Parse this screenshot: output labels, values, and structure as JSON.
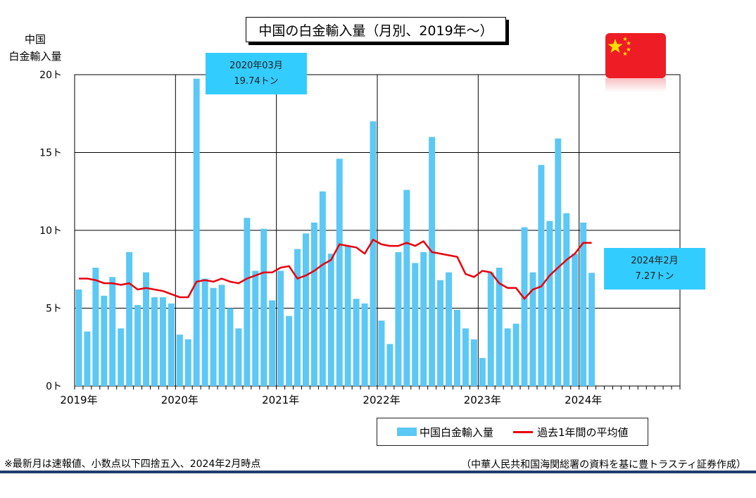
{
  "title": "中国の白金輸入量（月別、2019年〜）",
  "yaxis_title_line1": "中国",
  "yaxis_title_line2": "白金輸入量",
  "callout1": {
    "line1": "2020年03月",
    "line2": "19.74トン"
  },
  "callout2": {
    "line1": "2024年2月",
    "line2": "7.27トン"
  },
  "legend": {
    "bar": "中国白金輸入量",
    "line": "過去1年間の平均値"
  },
  "footnote": "※最新月は速報値、小数点以下四捨五入、2024年2月時点",
  "source": "（中華人民共和国海関総署の資料を基に豊トラスティ証券作成）",
  "colors": {
    "bar": "#5bc8f5",
    "line": "#e8000b",
    "callout": "#33ccff",
    "flag": "#ee1c25",
    "star": "#ffde00"
  },
  "chart_data": {
    "type": "bar",
    "ylim": [
      0,
      20
    ],
    "yticks": [
      {
        "value": 0,
        "label": "0ト"
      },
      {
        "value": 5,
        "label": "5ト"
      },
      {
        "value": 10,
        "label": "10ト"
      },
      {
        "value": 15,
        "label": "15ト"
      },
      {
        "value": 20,
        "label": "20ト"
      }
    ],
    "xlabels": [
      "2019年",
      "2020年",
      "2021年",
      "2022年",
      "2023年",
      "2024年"
    ],
    "months_total": 72,
    "start": "2019-01",
    "series": [
      {
        "name": "中国白金輸入量",
        "type": "bar",
        "values": [
          6.2,
          3.5,
          7.6,
          5.8,
          7.0,
          3.7,
          8.6,
          5.2,
          7.3,
          5.7,
          5.7,
          5.3,
          3.3,
          3.0,
          19.74,
          6.9,
          6.3,
          6.5,
          5.0,
          3.7,
          10.8,
          7.4,
          10.1,
          5.5,
          7.4,
          4.5,
          8.8,
          9.8,
          10.5,
          12.5,
          8.5,
          14.6,
          9.0,
          5.6,
          5.3,
          17.0,
          4.2,
          2.7,
          8.6,
          12.6,
          7.9,
          8.6,
          16.0,
          6.8,
          7.3,
          4.9,
          3.7,
          3.0,
          1.8,
          7.3,
          7.6,
          3.7,
          4.0,
          10.2,
          7.3,
          14.2,
          10.6,
          15.9,
          11.1,
          8.5,
          10.5,
          7.27
        ]
      },
      {
        "name": "過去1年間の平均値",
        "type": "line",
        "values": [
          6.9,
          6.9,
          6.8,
          6.6,
          6.6,
          6.5,
          6.6,
          6.2,
          6.3,
          6.2,
          6.1,
          5.9,
          5.7,
          5.7,
          6.7,
          6.8,
          6.7,
          6.9,
          6.7,
          6.6,
          6.9,
          7.1,
          7.3,
          7.3,
          7.6,
          7.7,
          6.9,
          7.1,
          7.4,
          7.8,
          8.1,
          9.1,
          9.0,
          8.9,
          8.5,
          9.4,
          9.1,
          9.0,
          9.0,
          9.2,
          9.0,
          9.3,
          8.6,
          8.5,
          8.4,
          8.3,
          7.2,
          7.0,
          7.4,
          7.3,
          6.6,
          6.3,
          6.3,
          5.6,
          6.2,
          6.4,
          7.1,
          7.6,
          8.1,
          8.5,
          9.2,
          9.2
        ]
      }
    ]
  }
}
